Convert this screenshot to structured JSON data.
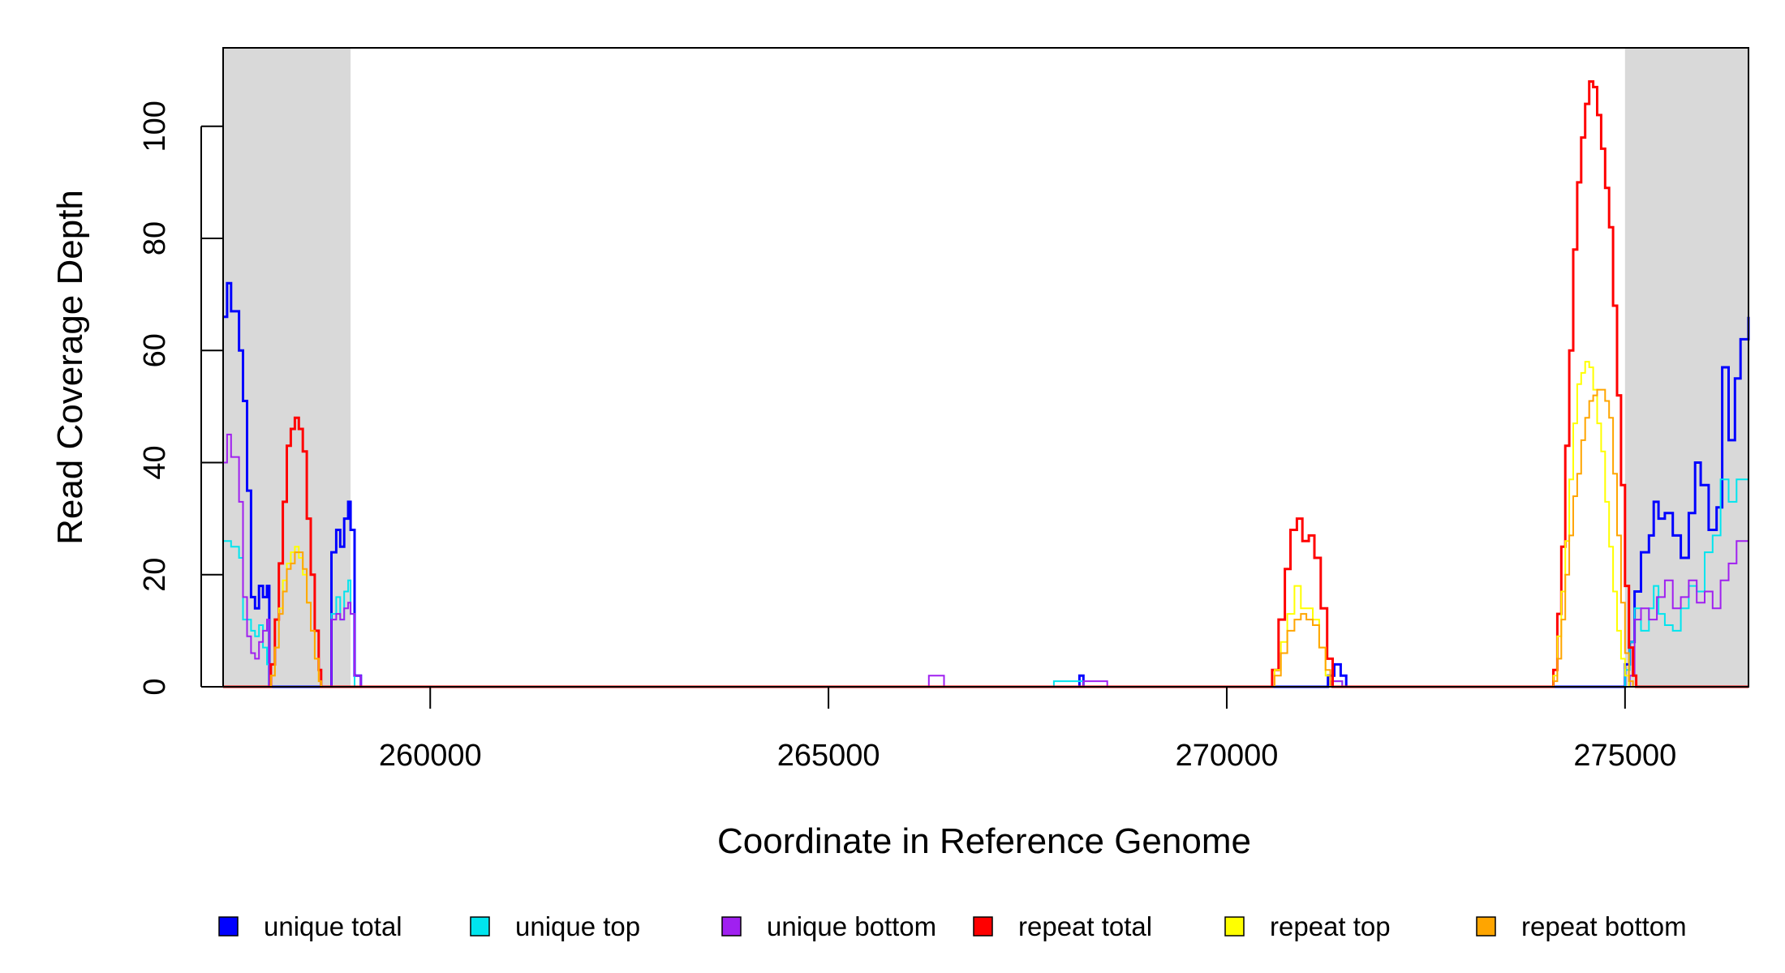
{
  "chart_data": {
    "type": "line",
    "xlabel": "Coordinate in Reference Genome",
    "ylabel": "Read Coverage Depth",
    "xlim": [
      257400,
      276550
    ],
    "ylim": [
      0,
      114
    ],
    "x_ticks": [
      260000,
      265000,
      270000,
      275000
    ],
    "x_tick_labels": [
      "260000",
      "265000",
      "270000",
      "275000"
    ],
    "y_ticks": [
      0,
      20,
      40,
      60,
      80,
      100
    ],
    "y_tick_labels": [
      "0",
      "20",
      "40",
      "60",
      "80",
      "100"
    ],
    "shaded_regions": [
      [
        257400,
        259000
      ],
      [
        275000,
        276550
      ]
    ],
    "grid": false,
    "legend_position": "bottom",
    "legend": [
      {
        "label": "unique total",
        "color": "#0000ff"
      },
      {
        "label": "unique top",
        "color": "#00e5ee"
      },
      {
        "label": "unique bottom",
        "color": "#a020f0"
      },
      {
        "label": "repeat total",
        "color": "#ff0000"
      },
      {
        "label": "repeat top",
        "color": "#ffff00"
      },
      {
        "label": "repeat bottom",
        "color": "#ffa500"
      }
    ],
    "series": [
      {
        "name": "unique total",
        "color": "#0000ff",
        "width": 3,
        "points": [
          [
            257400,
            66
          ],
          [
            257450,
            72
          ],
          [
            257500,
            67
          ],
          [
            257600,
            60
          ],
          [
            257650,
            51
          ],
          [
            257700,
            35
          ],
          [
            257750,
            16
          ],
          [
            257800,
            14
          ],
          [
            257850,
            18
          ],
          [
            257900,
            16
          ],
          [
            257950,
            18
          ],
          [
            257980,
            0
          ],
          [
            258750,
            0
          ],
          [
            258760,
            24
          ],
          [
            258820,
            28
          ],
          [
            258870,
            25
          ],
          [
            258920,
            30
          ],
          [
            258970,
            33
          ],
          [
            259000,
            28
          ],
          [
            259050,
            2
          ],
          [
            259130,
            0
          ],
          [
            268100,
            0
          ],
          [
            268150,
            2
          ],
          [
            268200,
            0
          ],
          [
            271250,
            0
          ],
          [
            271270,
            2
          ],
          [
            271350,
            4
          ],
          [
            271430,
            2
          ],
          [
            271500,
            0
          ],
          [
            274950,
            0
          ],
          [
            275000,
            4
          ],
          [
            275060,
            8
          ],
          [
            275120,
            17
          ],
          [
            275200,
            24
          ],
          [
            275300,
            27
          ],
          [
            275360,
            33
          ],
          [
            275420,
            30
          ],
          [
            275500,
            31
          ],
          [
            275600,
            27
          ],
          [
            275700,
            23
          ],
          [
            275800,
            31
          ],
          [
            275880,
            40
          ],
          [
            275950,
            36
          ],
          [
            276050,
            28
          ],
          [
            276150,
            32
          ],
          [
            276220,
            57
          ],
          [
            276300,
            44
          ],
          [
            276380,
            55
          ],
          [
            276450,
            62
          ],
          [
            276550,
            66
          ]
        ]
      },
      {
        "name": "unique top",
        "color": "#00e5ee",
        "width": 2,
        "points": [
          [
            257400,
            26
          ],
          [
            257500,
            25
          ],
          [
            257600,
            23
          ],
          [
            257650,
            12
          ],
          [
            257750,
            10
          ],
          [
            257800,
            9
          ],
          [
            257850,
            11
          ],
          [
            257900,
            7
          ],
          [
            257950,
            4
          ],
          [
            257980,
            0
          ],
          [
            258750,
            0
          ],
          [
            258760,
            13
          ],
          [
            258820,
            16
          ],
          [
            258870,
            12
          ],
          [
            258920,
            17
          ],
          [
            258970,
            19
          ],
          [
            259000,
            13
          ],
          [
            259050,
            0
          ],
          [
            267800,
            0
          ],
          [
            267830,
            1
          ],
          [
            268200,
            0
          ],
          [
            271250,
            0
          ],
          [
            271300,
            1
          ],
          [
            271450,
            0
          ],
          [
            274950,
            0
          ],
          [
            275000,
            3
          ],
          [
            275060,
            8
          ],
          [
            275120,
            14
          ],
          [
            275200,
            10
          ],
          [
            275300,
            14
          ],
          [
            275360,
            18
          ],
          [
            275420,
            13
          ],
          [
            275500,
            11
          ],
          [
            275600,
            10
          ],
          [
            275700,
            14
          ],
          [
            275800,
            18
          ],
          [
            275900,
            17
          ],
          [
            276000,
            24
          ],
          [
            276100,
            27
          ],
          [
            276200,
            37
          ],
          [
            276300,
            33
          ],
          [
            276400,
            37
          ],
          [
            276550,
            36
          ]
        ]
      },
      {
        "name": "unique bottom",
        "color": "#a020f0",
        "width": 2,
        "points": [
          [
            257400,
            40
          ],
          [
            257450,
            45
          ],
          [
            257500,
            41
          ],
          [
            257600,
            33
          ],
          [
            257650,
            16
          ],
          [
            257700,
            9
          ],
          [
            257750,
            6
          ],
          [
            257800,
            5
          ],
          [
            257850,
            8
          ],
          [
            257900,
            10
          ],
          [
            257950,
            12
          ],
          [
            257980,
            0
          ],
          [
            258750,
            0
          ],
          [
            258760,
            12
          ],
          [
            258820,
            13
          ],
          [
            258870,
            12
          ],
          [
            258920,
            14
          ],
          [
            258970,
            15
          ],
          [
            259000,
            13
          ],
          [
            259050,
            2
          ],
          [
            259130,
            0
          ],
          [
            266250,
            0
          ],
          [
            266260,
            2
          ],
          [
            266450,
            0
          ],
          [
            268150,
            0
          ],
          [
            268200,
            1
          ],
          [
            268500,
            0
          ],
          [
            271300,
            0
          ],
          [
            271320,
            1
          ],
          [
            271450,
            0
          ],
          [
            275000,
            0
          ],
          [
            275060,
            2
          ],
          [
            275120,
            12
          ],
          [
            275200,
            14
          ],
          [
            275300,
            12
          ],
          [
            275400,
            16
          ],
          [
            275500,
            19
          ],
          [
            275600,
            14
          ],
          [
            275700,
            16
          ],
          [
            275800,
            19
          ],
          [
            275900,
            15
          ],
          [
            276000,
            17
          ],
          [
            276100,
            14
          ],
          [
            276200,
            19
          ],
          [
            276300,
            22
          ],
          [
            276400,
            26
          ],
          [
            276550,
            26
          ]
        ]
      },
      {
        "name": "repeat total",
        "color": "#ff0000",
        "width": 3,
        "points": [
          [
            257400,
            0
          ],
          [
            257950,
            0
          ],
          [
            258000,
            4
          ],
          [
            258050,
            12
          ],
          [
            258100,
            22
          ],
          [
            258150,
            33
          ],
          [
            258200,
            43
          ],
          [
            258250,
            46
          ],
          [
            258300,
            48
          ],
          [
            258350,
            46
          ],
          [
            258400,
            42
          ],
          [
            258450,
            30
          ],
          [
            258500,
            20
          ],
          [
            258550,
            10
          ],
          [
            258600,
            3
          ],
          [
            258630,
            0
          ],
          [
            270530,
            0
          ],
          [
            270570,
            3
          ],
          [
            270650,
            12
          ],
          [
            270730,
            21
          ],
          [
            270800,
            28
          ],
          [
            270880,
            30
          ],
          [
            270950,
            26
          ],
          [
            271030,
            27
          ],
          [
            271100,
            23
          ],
          [
            271180,
            14
          ],
          [
            271260,
            5
          ],
          [
            271330,
            0
          ],
          [
            274050,
            0
          ],
          [
            274100,
            3
          ],
          [
            274150,
            13
          ],
          [
            274200,
            25
          ],
          [
            274250,
            43
          ],
          [
            274300,
            60
          ],
          [
            274350,
            78
          ],
          [
            274400,
            90
          ],
          [
            274450,
            98
          ],
          [
            274500,
            104
          ],
          [
            274550,
            108
          ],
          [
            274600,
            107
          ],
          [
            274650,
            102
          ],
          [
            274700,
            96
          ],
          [
            274750,
            89
          ],
          [
            274800,
            82
          ],
          [
            274850,
            68
          ],
          [
            274900,
            52
          ],
          [
            274950,
            36
          ],
          [
            275000,
            18
          ],
          [
            275050,
            7
          ],
          [
            275100,
            2
          ],
          [
            275140,
            0
          ],
          [
            276550,
            0
          ]
        ]
      },
      {
        "name": "repeat top",
        "color": "#ffff00",
        "width": 2,
        "points": [
          [
            257400,
            0
          ],
          [
            257950,
            0
          ],
          [
            258000,
            2
          ],
          [
            258050,
            7
          ],
          [
            258100,
            14
          ],
          [
            258150,
            19
          ],
          [
            258200,
            22
          ],
          [
            258250,
            24
          ],
          [
            258300,
            25
          ],
          [
            258350,
            23
          ],
          [
            258400,
            20
          ],
          [
            258450,
            15
          ],
          [
            258500,
            10
          ],
          [
            258550,
            5
          ],
          [
            258600,
            1
          ],
          [
            258630,
            0
          ],
          [
            270550,
            0
          ],
          [
            270600,
            3
          ],
          [
            270680,
            8
          ],
          [
            270760,
            13
          ],
          [
            270850,
            18
          ],
          [
            270930,
            14
          ],
          [
            271000,
            14
          ],
          [
            271080,
            12
          ],
          [
            271160,
            7
          ],
          [
            271240,
            2
          ],
          [
            271300,
            0
          ],
          [
            274050,
            0
          ],
          [
            274100,
            2
          ],
          [
            274150,
            9
          ],
          [
            274200,
            17
          ],
          [
            274250,
            26
          ],
          [
            274300,
            37
          ],
          [
            274350,
            47
          ],
          [
            274400,
            54
          ],
          [
            274450,
            56
          ],
          [
            274500,
            58
          ],
          [
            274550,
            57
          ],
          [
            274600,
            53
          ],
          [
            274650,
            47
          ],
          [
            274700,
            42
          ],
          [
            274750,
            33
          ],
          [
            274800,
            25
          ],
          [
            274850,
            17
          ],
          [
            274900,
            10
          ],
          [
            274950,
            5
          ],
          [
            275000,
            2
          ],
          [
            275050,
            0
          ],
          [
            276550,
            0
          ]
        ]
      },
      {
        "name": "repeat bottom",
        "color": "#ffa500",
        "width": 2,
        "points": [
          [
            257400,
            0
          ],
          [
            257950,
            0
          ],
          [
            258000,
            2
          ],
          [
            258050,
            7
          ],
          [
            258100,
            13
          ],
          [
            258150,
            17
          ],
          [
            258200,
            21
          ],
          [
            258250,
            22
          ],
          [
            258300,
            24
          ],
          [
            258350,
            24
          ],
          [
            258400,
            21
          ],
          [
            258450,
            15
          ],
          [
            258500,
            10
          ],
          [
            258550,
            5
          ],
          [
            258600,
            1
          ],
          [
            258630,
            0
          ],
          [
            270550,
            0
          ],
          [
            270600,
            2
          ],
          [
            270680,
            6
          ],
          [
            270760,
            10
          ],
          [
            270850,
            12
          ],
          [
            270930,
            13
          ],
          [
            271000,
            12
          ],
          [
            271080,
            11
          ],
          [
            271160,
            7
          ],
          [
            271240,
            3
          ],
          [
            271300,
            0
          ],
          [
            274050,
            0
          ],
          [
            274100,
            1
          ],
          [
            274150,
            5
          ],
          [
            274200,
            12
          ],
          [
            274250,
            20
          ],
          [
            274300,
            27
          ],
          [
            274350,
            34
          ],
          [
            274400,
            38
          ],
          [
            274450,
            44
          ],
          [
            274500,
            48
          ],
          [
            274550,
            51
          ],
          [
            274600,
            52
          ],
          [
            274650,
            53
          ],
          [
            274700,
            53
          ],
          [
            274750,
            51
          ],
          [
            274800,
            48
          ],
          [
            274850,
            38
          ],
          [
            274900,
            27
          ],
          [
            274950,
            15
          ],
          [
            275000,
            6
          ],
          [
            275050,
            1
          ],
          [
            275100,
            0
          ],
          [
            276550,
            0
          ]
        ]
      }
    ]
  }
}
